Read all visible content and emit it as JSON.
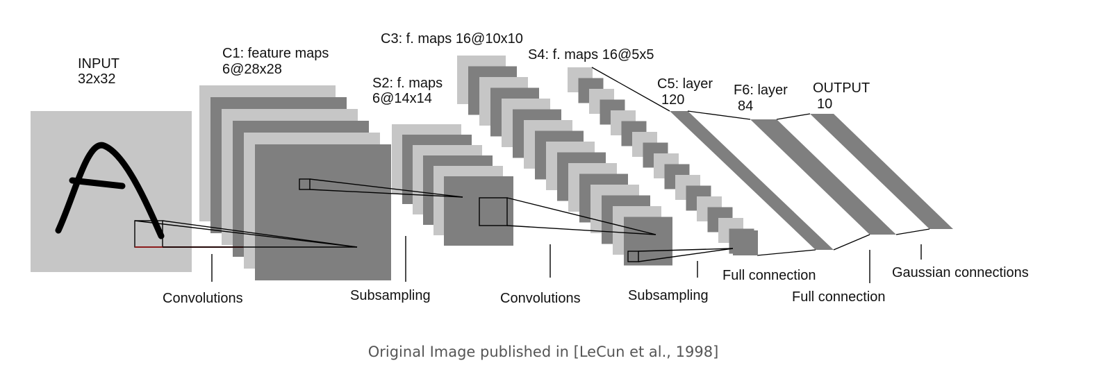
{
  "diagram": {
    "colors": {
      "light": "#c6c6c6",
      "dark": "#7f7f7f",
      "line": "#000000",
      "red": "#8b1a1a",
      "text": "#111111",
      "caption": "#555555"
    },
    "layers": {
      "input": {
        "title": "INPUT",
        "size": "32x32"
      },
      "c1": {
        "title": "C1: feature maps",
        "size": "6@28x28"
      },
      "s2": {
        "title": "S2: f. maps",
        "size": "6@14x14"
      },
      "c3": {
        "title": "C3: f. maps 16@10x10"
      },
      "s4": {
        "title": "S4: f. maps 16@5x5"
      },
      "c5": {
        "title": "C5: layer",
        "size": "120"
      },
      "f6": {
        "title": "F6: layer",
        "size": "84"
      },
      "output": {
        "title": "OUTPUT",
        "size": "10"
      }
    },
    "operations": [
      "Convolutions",
      "Subsampling",
      "Convolutions",
      "Subsampling",
      "Full connection",
      "Full connection",
      "Gaussian connections"
    ]
  },
  "caption": "Original Image published in [LeCun et al., 1998]"
}
